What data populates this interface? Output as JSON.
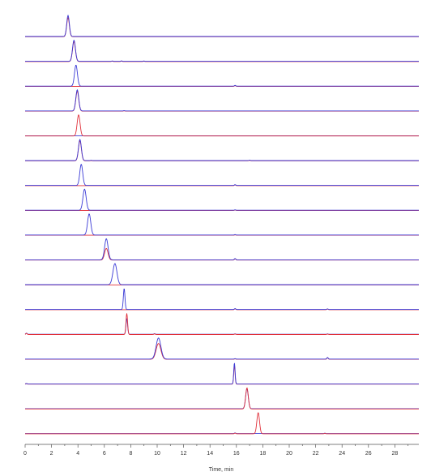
{
  "chart_data": {
    "type": "line",
    "xlabel": "Time, min",
    "xlim": [
      0,
      30
    ],
    "x_ticks": [
      "0",
      "2",
      "4",
      "6",
      "8",
      "10",
      "12",
      "14",
      "16",
      "18",
      "20",
      "22",
      "24",
      "26",
      "28"
    ],
    "x_tick_values": [
      0,
      2,
      4,
      6,
      8,
      10,
      12,
      14,
      16,
      18,
      20,
      22,
      24,
      26,
      28
    ],
    "grid": false,
    "legend": "none",
    "colors": {
      "blue": "#3a3ad6",
      "red": "#e0303a",
      "axis": "#555555"
    },
    "traces": [
      {
        "main_peak": {
          "rt": 3.25,
          "blue": 1.0,
          "red": 0.9,
          "width": 0.1
        },
        "small_peaks": []
      },
      {
        "main_peak": {
          "rt": 3.7,
          "blue": 1.0,
          "red": 0.95,
          "width": 0.11
        },
        "small_peaks": [
          {
            "rt": 6.6,
            "h": 0.05
          },
          {
            "rt": 7.3,
            "h": 0.06
          },
          {
            "rt": 9.0,
            "h": 0.04
          }
        ]
      },
      {
        "main_peak": {
          "rt": 3.85,
          "blue": 1.0,
          "red": 0.0,
          "width": 0.11
        },
        "small_peaks": [
          {
            "rt": 15.9,
            "h": 0.1
          }
        ]
      },
      {
        "main_peak": {
          "rt": 3.95,
          "blue": 1.0,
          "red": 0.95,
          "width": 0.11
        },
        "small_peaks": [
          {
            "rt": 7.5,
            "h": 0.04
          }
        ]
      },
      {
        "main_peak": {
          "rt": 4.05,
          "blue": 0.0,
          "red": 1.0,
          "width": 0.11
        },
        "small_peaks": []
      },
      {
        "main_peak": {
          "rt": 4.15,
          "blue": 1.0,
          "red": 0.95,
          "width": 0.11
        },
        "small_peaks": [
          {
            "rt": 5.0,
            "h": 0.04
          },
          {
            "rt": 17.0,
            "h": 0.06
          }
        ]
      },
      {
        "main_peak": {
          "rt": 4.25,
          "blue": 1.0,
          "red": 0.0,
          "width": 0.11
        },
        "small_peaks": [
          {
            "rt": 15.9,
            "h": 0.1
          }
        ]
      },
      {
        "main_peak": {
          "rt": 4.5,
          "blue": 1.0,
          "red": 0.0,
          "width": 0.12
        },
        "small_peaks": [
          {
            "rt": 15.9,
            "h": 0.05
          }
        ]
      },
      {
        "main_peak": {
          "rt": 4.85,
          "blue": 1.0,
          "red": 0.0,
          "width": 0.12
        },
        "small_peaks": [
          {
            "rt": 15.9,
            "h": 0.05
          }
        ]
      },
      {
        "main_peak": {
          "rt": 6.15,
          "blue": 1.0,
          "red": 0.55,
          "width": 0.13
        },
        "small_peaks": [
          {
            "rt": 15.9,
            "h": 0.18
          }
        ]
      },
      {
        "main_peak": {
          "rt": 6.8,
          "blue": 1.0,
          "red": 0.0,
          "width": 0.15
        },
        "small_peaks": []
      },
      {
        "main_peak": {
          "rt": 7.5,
          "blue": 1.0,
          "red": 0.0,
          "width": 0.06
        },
        "small_peaks": [
          {
            "rt": 15.9,
            "h": 0.12
          },
          {
            "rt": 22.9,
            "h": 0.08
          }
        ]
      },
      {
        "main_peak": {
          "rt": 7.7,
          "blue": 0.75,
          "red": 1.0,
          "width": 0.06
        },
        "small_peaks": [
          {
            "rt": 0.1,
            "h": 0.15
          },
          {
            "rt": 9.8,
            "h": 0.08
          },
          {
            "rt": 15.9,
            "h": 0.06
          },
          {
            "rt": 22.9,
            "h": 0.05
          }
        ]
      },
      {
        "main_peak": {
          "rt": 10.1,
          "blue": 1.0,
          "red": 0.75,
          "width": 0.18
        },
        "small_peaks": [
          {
            "rt": 15.9,
            "h": 0.06
          },
          {
            "rt": 22.9,
            "h": 0.22
          }
        ]
      },
      {
        "main_peak": {
          "rt": 15.85,
          "blue": 1.0,
          "red": 0.9,
          "width": 0.05
        },
        "small_peaks": [
          {
            "rt": 0.1,
            "h": 0.05
          }
        ]
      },
      {
        "main_peak": {
          "rt": 16.8,
          "blue": 0.95,
          "red": 1.0,
          "width": 0.1
        },
        "small_peaks": []
      },
      {
        "main_peak": {
          "rt": 17.65,
          "blue": 0.0,
          "red": 1.0,
          "width": 0.1
        },
        "small_peaks": [
          {
            "rt": 15.9,
            "h": 0.08
          },
          {
            "rt": 22.7,
            "h": 0.05
          }
        ]
      }
    ]
  }
}
